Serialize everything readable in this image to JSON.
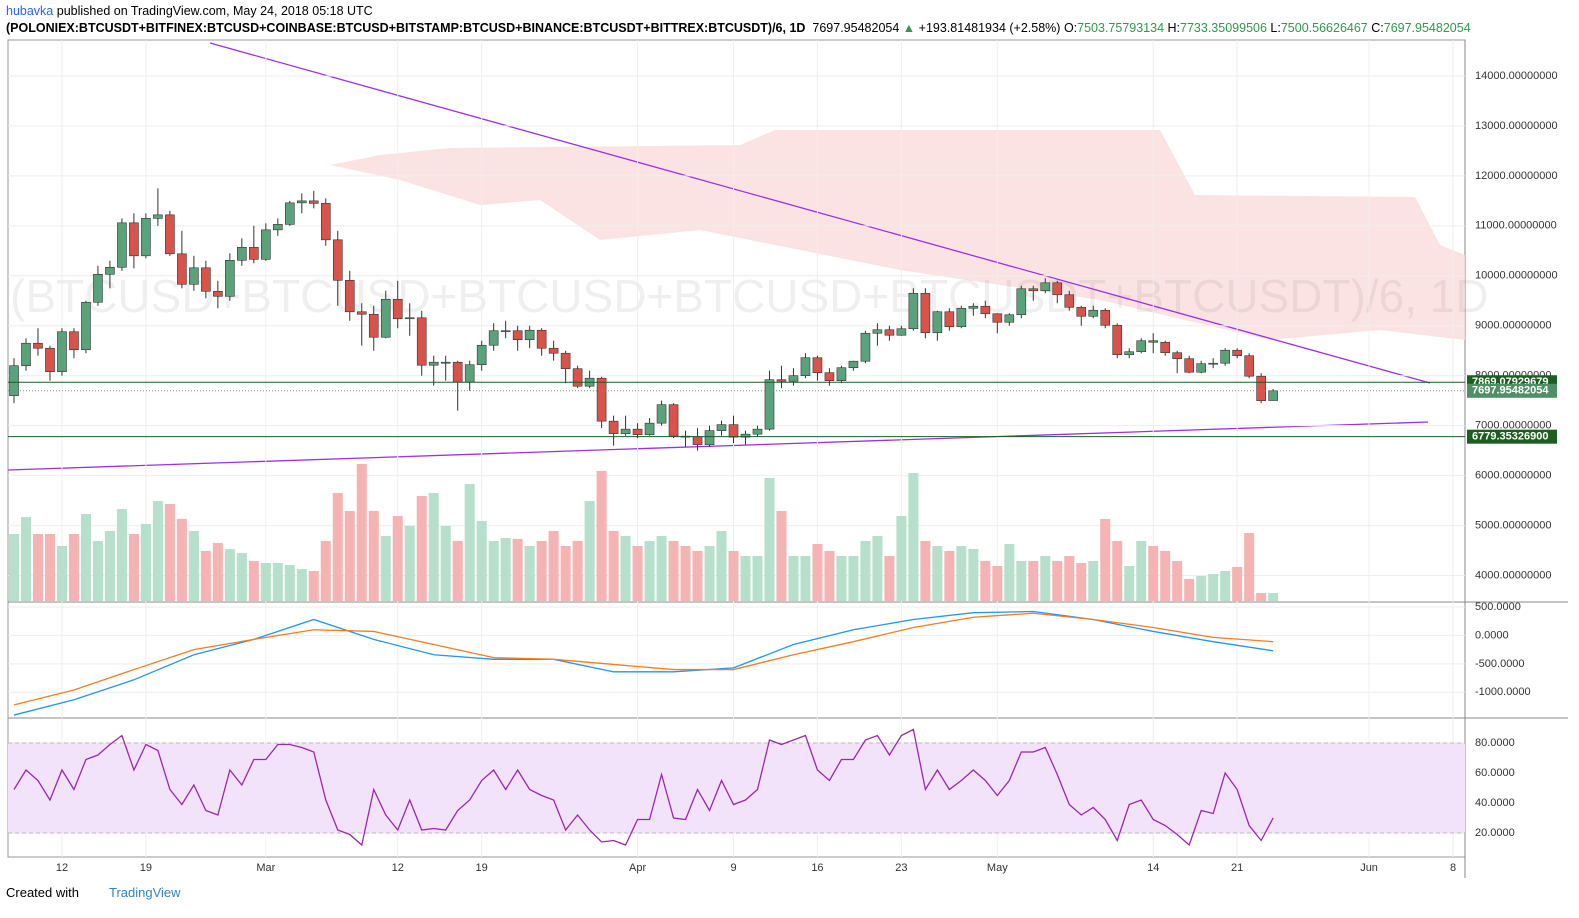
{
  "header": {
    "author": "hubavka",
    "published": "published on TradingView.com, May 24, 2018 05:18 UTC",
    "symbol": "(POLONIEX:BTCUSDT+BITFINEX:BTCUSD+COINBASE:BTCUSD+BITSTAMP:BTCUSD+BINANCE:BTCUSDT+BITTREX:BTCUSDT)/6, 1D",
    "change": "+193.81481934 (+2.58%)",
    "ohlc_labels": [
      "O:",
      "H:",
      "L:",
      "C:"
    ],
    "watermark": "(BTCUSD+BTCUSD+BTCUSD+BTCUSD+BTCUSDT+BTCUSDT)/6, 1D"
  },
  "footer": {
    "created": "Created with",
    "brand": "TradingView"
  },
  "chart_data": [
    {
      "type": "candlestick",
      "up_color": "#5aa37a",
      "down_color": "#d9534a",
      "volume_up_color": "#b6e0cb",
      "volume_down_color": "#f6b3b3",
      "xlim": [
        -0.5,
        121
      ],
      "xticks": [
        {
          "value": 4,
          "label": "12"
        },
        {
          "value": 11,
          "label": "19"
        },
        {
          "value": 21,
          "label": "Mar"
        },
        {
          "value": 32,
          "label": "12"
        },
        {
          "value": 39,
          "label": "19"
        },
        {
          "value": 52,
          "label": "Apr"
        },
        {
          "value": 60,
          "label": "9"
        },
        {
          "value": 67,
          "label": "16"
        },
        {
          "value": 74,
          "label": "23"
        },
        {
          "value": 82,
          "label": "May"
        },
        {
          "value": 95,
          "label": "14"
        },
        {
          "value": 102,
          "label": "21"
        },
        {
          "value": 113,
          "label": "Jun"
        },
        {
          "value": 120,
          "label": "8"
        }
      ],
      "ylim": [
        3490,
        14720
      ],
      "yticks": [
        {
          "value": 4000,
          "label": "4000.00000000"
        },
        {
          "value": 5000,
          "label": "5000.00000000"
        },
        {
          "value": 6000,
          "label": "6000.00000000"
        },
        {
          "value": 7000,
          "label": "7000.00000000"
        },
        {
          "value": 8000,
          "label": "8000.00000000"
        },
        {
          "value": 9000,
          "label": "9000.00000000"
        },
        {
          "value": 10000,
          "label": "10000.00000000"
        },
        {
          "value": 11000,
          "label": "11000.00000000"
        },
        {
          "value": 12000,
          "label": "12000.00000000"
        },
        {
          "value": 13000,
          "label": "13000.00000000"
        },
        {
          "value": 14000,
          "label": "14000.00000000"
        }
      ],
      "levels": [
        7869.07929679,
        {
          "value": 6779.353269,
          "label": "6779.35326900"
        }
      ],
      "ohlc": [
        [
          7600,
          8350,
          7450,
          8200
        ],
        [
          8200,
          8750,
          8100,
          8650
        ],
        [
          8650,
          8950,
          8400,
          8550
        ],
        [
          8550,
          8600,
          7900,
          8080
        ],
        [
          8080,
          8950,
          8000,
          8880
        ],
        [
          8880,
          8950,
          8350,
          8520
        ],
        [
          8520,
          9500,
          8450,
          9470
        ],
        [
          9470,
          10200,
          9400,
          10030
        ],
        [
          10030,
          10300,
          9750,
          10170
        ],
        [
          10170,
          11150,
          10100,
          11060
        ],
        [
          11060,
          11250,
          10150,
          10400
        ],
        [
          10400,
          11250,
          10350,
          11150
        ],
        [
          11150,
          11750,
          11000,
          11220
        ],
        [
          11220,
          11300,
          10400,
          10440
        ],
        [
          10440,
          10900,
          9750,
          9830
        ],
        [
          9830,
          10400,
          9700,
          10160
        ],
        [
          10160,
          10300,
          9550,
          9690
        ],
        [
          9690,
          9900,
          9350,
          9590
        ],
        [
          9590,
          10450,
          9500,
          10310
        ],
        [
          10310,
          10750,
          10200,
          10570
        ],
        [
          10570,
          11000,
          10250,
          10330
        ],
        [
          10330,
          11050,
          10300,
          10920
        ],
        [
          10920,
          11150,
          10800,
          11030
        ],
        [
          11030,
          11500,
          11000,
          11460
        ],
        [
          11460,
          11650,
          11250,
          11500
        ],
        [
          11500,
          11700,
          11350,
          11450
        ],
        [
          11450,
          11550,
          10600,
          10720
        ],
        [
          10720,
          10900,
          9400,
          9910
        ],
        [
          9910,
          10100,
          9100,
          9280
        ],
        [
          9280,
          9450,
          8600,
          9230
        ],
        [
          9230,
          9400,
          8500,
          8770
        ],
        [
          8770,
          9700,
          8750,
          9530
        ],
        [
          9530,
          9900,
          8950,
          9140
        ],
        [
          9140,
          9450,
          8800,
          9160
        ],
        [
          9160,
          9300,
          8000,
          8210
        ],
        [
          8210,
          8400,
          7800,
          8270
        ],
        [
          8270,
          8400,
          7900,
          8270
        ],
        [
          8270,
          8300,
          7300,
          7870
        ],
        [
          7870,
          8300,
          7700,
          8220
        ],
        [
          8220,
          8700,
          8100,
          8610
        ],
        [
          8610,
          9050,
          8500,
          8900
        ],
        [
          8900,
          9100,
          8750,
          8900
        ],
        [
          8900,
          9000,
          8500,
          8720
        ],
        [
          8720,
          9000,
          8550,
          8910
        ],
        [
          8910,
          8950,
          8400,
          8550
        ],
        [
          8550,
          8700,
          8300,
          8450
        ],
        [
          8450,
          8500,
          7850,
          8140
        ],
        [
          8140,
          8200,
          7750,
          7790
        ],
        [
          7790,
          8100,
          7750,
          7950
        ],
        [
          7950,
          7980,
          6950,
          7090
        ],
        [
          7090,
          7200,
          6600,
          6840
        ],
        [
          6840,
          7200,
          6800,
          6930
        ],
        [
          6930,
          7050,
          6750,
          6820
        ],
        [
          6820,
          7150,
          6800,
          7050
        ],
        [
          7050,
          7500,
          7000,
          7420
        ],
        [
          7420,
          7450,
          6750,
          6790
        ],
        [
          6790,
          6900,
          6580,
          6780
        ],
        [
          6780,
          6950,
          6500,
          6620
        ],
        [
          6620,
          7000,
          6580,
          6900
        ],
        [
          6900,
          7100,
          6800,
          7020
        ],
        [
          7020,
          7200,
          6650,
          6770
        ],
        [
          6770,
          6900,
          6620,
          6830
        ],
        [
          6830,
          7000,
          6780,
          6930
        ],
        [
          6930,
          8100,
          6900,
          7920
        ],
        [
          7920,
          8200,
          7750,
          7890
        ],
        [
          7890,
          8150,
          7800,
          8000
        ],
        [
          8000,
          8450,
          7950,
          8360
        ],
        [
          8360,
          8400,
          7900,
          8060
        ],
        [
          8060,
          8150,
          7800,
          7900
        ],
        [
          7900,
          8200,
          7850,
          8160
        ],
        [
          8160,
          8300,
          8100,
          8290
        ],
        [
          8290,
          8900,
          8250,
          8850
        ],
        [
          8850,
          9050,
          8600,
          8920
        ],
        [
          8920,
          9000,
          8700,
          8810
        ],
        [
          8810,
          9000,
          8800,
          8940
        ],
        [
          8940,
          9750,
          8900,
          9650
        ],
        [
          9650,
          9750,
          8750,
          8860
        ],
        [
          8860,
          9300,
          8700,
          9280
        ],
        [
          9280,
          9350,
          8900,
          8980
        ],
        [
          8980,
          9400,
          8950,
          9350
        ],
        [
          9350,
          9450,
          9200,
          9390
        ],
        [
          9390,
          9500,
          9150,
          9240
        ],
        [
          9240,
          9250,
          8850,
          9070
        ],
        [
          9070,
          9250,
          9000,
          9220
        ],
        [
          9220,
          9800,
          9150,
          9740
        ],
        [
          9740,
          9800,
          9500,
          9700
        ],
        [
          9700,
          9950,
          9650,
          9860
        ],
        [
          9860,
          9900,
          9450,
          9620
        ],
        [
          9620,
          9700,
          9300,
          9370
        ],
        [
          9370,
          9400,
          9000,
          9190
        ],
        [
          9190,
          9400,
          9150,
          9310
        ],
        [
          9310,
          9350,
          8950,
          9010
        ],
        [
          9010,
          9050,
          8350,
          8420
        ],
        [
          8420,
          8550,
          8350,
          8480
        ],
        [
          8480,
          8750,
          8450,
          8700
        ],
        [
          8700,
          8850,
          8450,
          8670
        ],
        [
          8670,
          8700,
          8400,
          8460
        ],
        [
          8460,
          8500,
          8050,
          8340
        ],
        [
          8340,
          8400,
          8050,
          8070
        ],
        [
          8070,
          8300,
          8050,
          8240
        ],
        [
          8240,
          8350,
          8150,
          8250
        ],
        [
          8250,
          8550,
          8200,
          8510
        ],
        [
          8510,
          8550,
          8350,
          8400
        ],
        [
          8400,
          8450,
          7950,
          7990
        ],
        [
          7990,
          8050,
          7450,
          7500
        ],
        [
          7503.75793134,
          7733.35099506,
          7500.56626467,
          7697.95482054
        ]
      ],
      "volume_lim": [
        0,
        140
      ],
      "volume": [
        67,
        84,
        67,
        67,
        55,
        67,
        87,
        60,
        70,
        92,
        67,
        77,
        100,
        97,
        82,
        70,
        50,
        58,
        52,
        48,
        40,
        38,
        38,
        36,
        32,
        30,
        60,
        108,
        90,
        137,
        90,
        65,
        85,
        75,
        105,
        108,
        75,
        60,
        117,
        80,
        60,
        63,
        62,
        55,
        60,
        70,
        55,
        60,
        100,
        130,
        70,
        65,
        55,
        60,
        65,
        60,
        55,
        50,
        55,
        70,
        50,
        45,
        45,
        123,
        90,
        45,
        45,
        57,
        50,
        45,
        45,
        60,
        65,
        45,
        85,
        128,
        60,
        55,
        50,
        55,
        52,
        40,
        35,
        57,
        40,
        40,
        45,
        40,
        45,
        38,
        40,
        82,
        60,
        35,
        60,
        55,
        50,
        40,
        22,
        25,
        27,
        30,
        34,
        68,
        8,
        8
      ]
    },
    {
      "type": "line",
      "x": [
        0,
        5,
        10,
        15,
        20,
        25,
        30,
        35,
        40,
        45,
        50,
        55,
        60,
        65,
        70,
        75,
        80,
        85,
        90,
        95,
        100,
        105
      ],
      "ylim": [
        -1434,
        570
      ],
      "yticks": [
        {
          "value": 500,
          "label": "500.0000"
        },
        {
          "value": 0,
          "label": "0.0000"
        },
        {
          "value": -500,
          "label": "-500.0000"
        },
        {
          "value": -1000,
          "label": "-1000.0000"
        }
      ],
      "series": [
        {
          "color": "#2196f3",
          "values": [
            -1400,
            -1130,
            -780,
            -340,
            -70,
            280,
            -70,
            -340,
            -420,
            -420,
            -640,
            -640,
            -570,
            -160,
            100,
            280,
            400,
            420,
            280,
            70,
            -110,
            -270
          ]
        },
        {
          "color": "#f57c20",
          "values": [
            -1220,
            -960,
            -600,
            -250,
            -70,
            100,
            70,
            -160,
            -390,
            -420,
            -510,
            -600,
            -600,
            -340,
            -110,
            140,
            320,
            390,
            280,
            140,
            -35,
            -110
          ]
        }
      ]
    },
    {
      "type": "line",
      "ylim": [
        4,
        96
      ],
      "band_color": "#f2e3fa",
      "yticks": [
        {
          "value": 20,
          "label": "20.0000"
        },
        {
          "value": 40,
          "label": "40.0000"
        },
        {
          "value": 60,
          "label": "60.0000"
        },
        {
          "value": 80,
          "label": "80.0000"
        }
      ],
      "series": [
        {
          "color": "#9c27b0",
          "values": [
            49,
            62,
            55,
            42,
            62,
            49,
            69,
            72,
            79,
            85,
            62,
            79,
            75,
            49,
            39,
            52,
            35,
            32,
            62,
            52,
            69,
            69,
            79,
            79,
            77,
            74,
            42,
            22,
            19,
            12,
            49,
            32,
            22,
            42,
            22,
            23,
            22,
            35,
            42,
            55,
            62,
            49,
            62,
            49,
            45,
            42,
            22,
            32,
            22,
            14,
            15,
            12,
            29,
            29,
            59,
            30,
            29,
            49,
            35,
            55,
            39,
            42,
            49,
            82,
            79,
            82,
            85,
            62,
            55,
            69,
            69,
            82,
            85,
            72,
            85,
            89,
            49,
            62,
            49,
            55,
            62,
            55,
            45,
            55,
            74,
            74,
            77,
            59,
            39,
            32,
            37,
            29,
            15,
            39,
            42,
            29,
            25,
            19,
            12,
            35,
            33,
            60,
            49,
            25,
            15,
            30
          ]
        }
      ]
    }
  ]
}
